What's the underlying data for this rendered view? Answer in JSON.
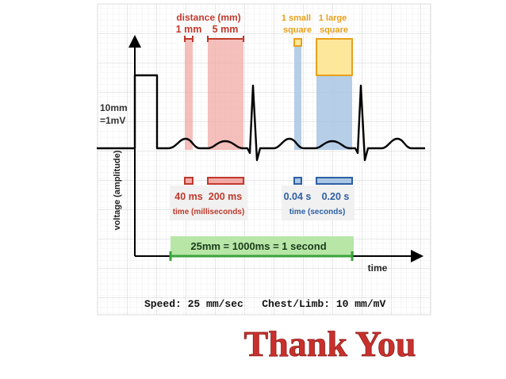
{
  "labels": {
    "distance_header": "distance (mm)",
    "one_mm": "1 mm",
    "five_mm": "5 mm",
    "small_square": "1 small\nsquare",
    "large_square": "1 large\nsquare",
    "calibration": "10mm\n=1mV",
    "y_axis": "voltage (amplitude)",
    "ms_40": "40 ms",
    "ms_200": "200 ms",
    "time_ms": "time (milliseconds)",
    "s_004": "0.04 s",
    "s_020": "0.20 s",
    "time_s": "time (seconds)",
    "one_second": "25mm = 1000ms = 1 second",
    "x_axis": "time",
    "settings": "Speed: 25 mm/sec   Chest/Limb: 10 mm/mV",
    "thank_you": "Thank You"
  },
  "colors": {
    "red": "#c0392b",
    "red_fill": "#f2a9a5",
    "blue": "#2e5fa3",
    "blue_fill": "#a9c6e3",
    "orange": "#e8a11c",
    "orange_fill": "#fde79a",
    "green": "#3aa33a",
    "green_fill": "#b7e6a7",
    "thank_you": "#c9302c"
  }
}
